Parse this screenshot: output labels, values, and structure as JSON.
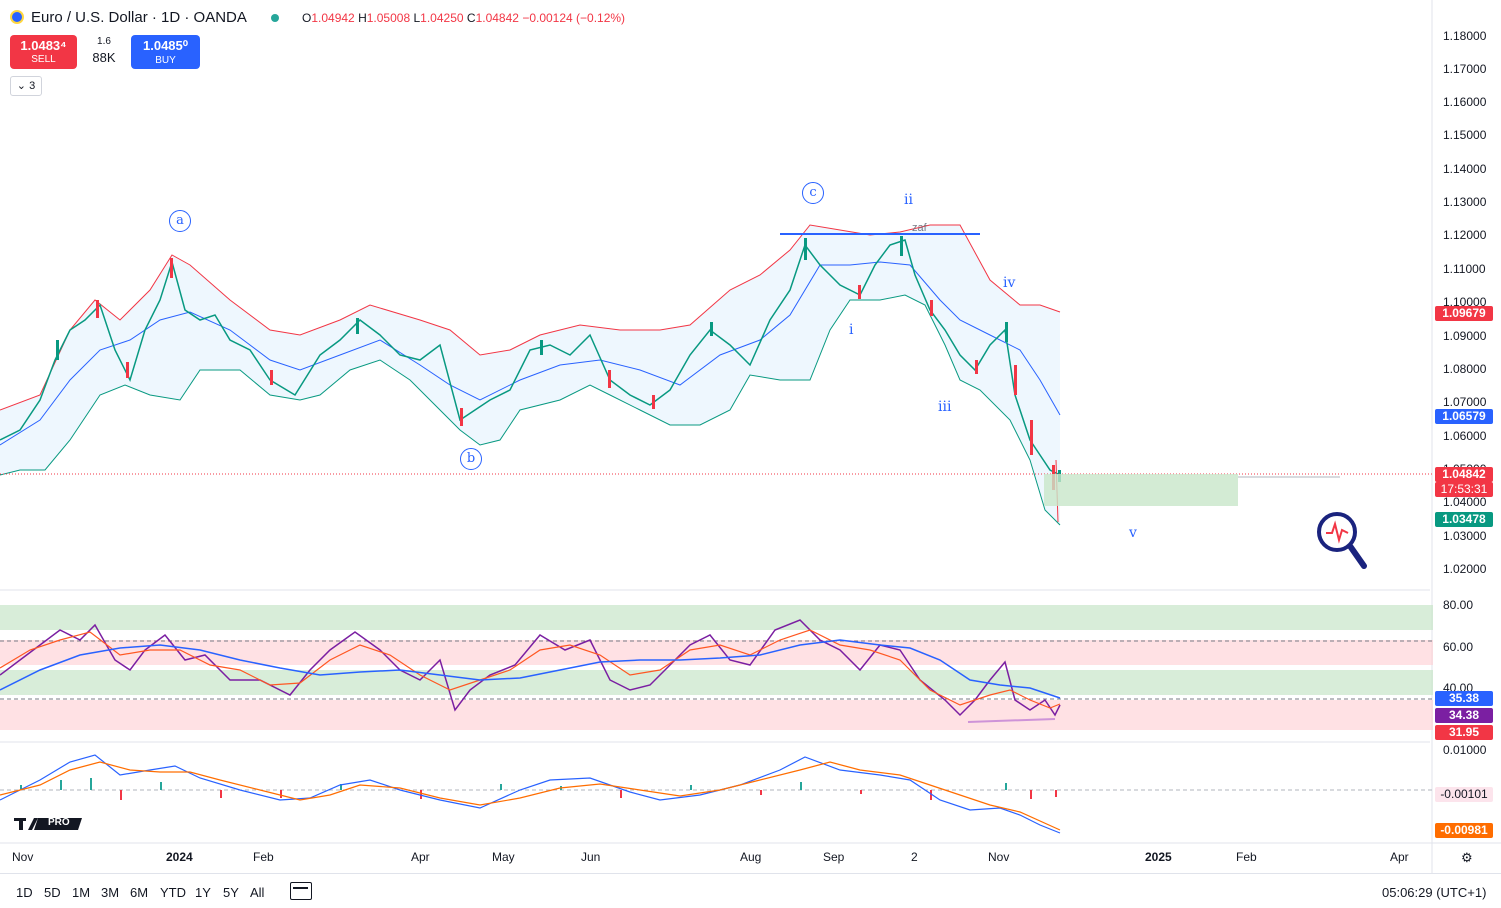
{
  "header": {
    "title": "Euro / U.S. Dollar · 1D · OANDA",
    "ohlc": {
      "open_k": "O",
      "open": "1.04942",
      "high_k": "H",
      "high": "1.05008",
      "low_k": "L",
      "low": "1.04250",
      "close_k": "C",
      "close": "1.04842",
      "change": "−0.00124 (−0.12%)"
    }
  },
  "trade": {
    "sell_price": "1.0483⁴",
    "sell_label": "SELL",
    "buy_price": "1.0485⁰",
    "buy_label": "BUY",
    "spread": "1.6",
    "volume": "88K"
  },
  "collapse_label": "⌄ 3",
  "price_axis": [
    "1.18000",
    "1.17000",
    "1.16000",
    "1.15000",
    "1.14000",
    "1.13000",
    "1.12000",
    "1.11000",
    "1.10000",
    "1.09000",
    "1.08000",
    "1.07000",
    "1.06000",
    "1.05000",
    "1.04000",
    "1.03000",
    "1.02000"
  ],
  "price_tags": {
    "bb_upper": "1.09679",
    "bb_basis": "1.06579",
    "last_price": "1.04842",
    "countdown": "17:53:31",
    "bb_lower": "1.03478"
  },
  "rsi_axis": [
    "80.00",
    "60.00",
    "40.00"
  ],
  "rsi_tags": {
    "ma": "35.38",
    "rsi": "34.38",
    "level": "31.95"
  },
  "macd_axis": [
    "0.01000",
    "-0.00101",
    "-0.00981"
  ],
  "time_axis": [
    {
      "label": "Nov",
      "bold": false
    },
    {
      "label": "2024",
      "bold": true
    },
    {
      "label": "Feb",
      "bold": false
    },
    {
      "label": "Apr",
      "bold": false
    },
    {
      "label": "May",
      "bold": false
    },
    {
      "label": "Jun",
      "bold": false
    },
    {
      "label": "Aug",
      "bold": false
    },
    {
      "label": "Sep",
      "bold": false
    },
    {
      "label": "2",
      "bold": false
    },
    {
      "label": "Nov",
      "bold": false
    },
    {
      "label": "2025",
      "bold": true
    },
    {
      "label": "Feb",
      "bold": false
    },
    {
      "label": "Apr",
      "bold": false
    }
  ],
  "waves": {
    "a": "a",
    "b": "b",
    "c": "c",
    "i": "i",
    "ii": "ii",
    "iii": "iii",
    "iv": "iv",
    "v": "v",
    "zaf": "zaf"
  },
  "ranges": [
    "1D",
    "5D",
    "1M",
    "3M",
    "6M",
    "YTD",
    "1Y",
    "5Y",
    "All"
  ],
  "clock": "05:06:29 (UTC+1)",
  "logo_text": "PRO",
  "colors": {
    "up": "#089981",
    "down": "#f23645",
    "accent": "#2962ff",
    "bb_upper": "#f23645",
    "bb_lower": "#089981",
    "rsi": "#7b1fa2",
    "rsi_ma": "#ff5722"
  }
}
